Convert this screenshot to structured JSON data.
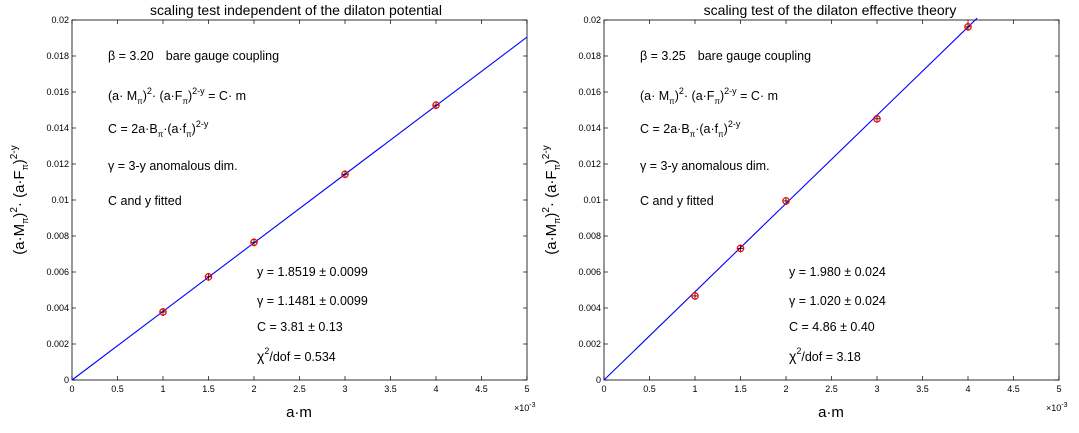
{
  "chart_data": [
    {
      "type": "scatter",
      "title": "scaling test independent of the dilaton potential",
      "xlabel": "a·m",
      "ylabel_parts": [
        "(a·M",
        "π",
        ")",
        "2",
        "· (a·F",
        "π",
        ")",
        "2-y"
      ],
      "x_exponent_label": "×10",
      "x_exponent": "-3",
      "xlim": [
        0,
        5
      ],
      "ylim": [
        0,
        0.02
      ],
      "x_ticks": [
        "0",
        "0.5",
        "1",
        "1.5",
        "2",
        "2.5",
        "3",
        "3.5",
        "4",
        "4.5",
        "5"
      ],
      "y_ticks": [
        "0",
        "0.002",
        "0.004",
        "0.006",
        "0.008",
        "0.01",
        "0.012",
        "0.014",
        "0.016",
        "0.018",
        "0.02"
      ],
      "grid": false,
      "points": [
        {
          "x": 1.0,
          "y": 0.00378
        },
        {
          "x": 1.5,
          "y": 0.00573
        },
        {
          "x": 2.0,
          "y": 0.00765
        },
        {
          "x": 3.0,
          "y": 0.01143
        },
        {
          "x": 4.0,
          "y": 0.01527
        }
      ],
      "fit_line": {
        "x": [
          0,
          5
        ],
        "y": [
          0,
          0.01905
        ]
      },
      "annotations": {
        "beta_value": "β = 3.20",
        "beta_desc": "bare gauge coupling",
        "eq1_a": "(a· M",
        "eq1_sub": "π",
        "eq1_sup": "2",
        "eq1_b": "· (a·F",
        "eq1_sub2": "π",
        "eq1_sup2": "2-y",
        "eq1_c": " = C· m",
        "eq2_a": "C = 2a·B",
        "eq2_sub": "π",
        "eq2_b": "·(a·f",
        "eq2_sub2": "π",
        "eq2_sup": "2-y",
        "gamma_def": "γ = 3-y  anomalous dim.",
        "fitted": "C and y fitted",
        "res_y": "y =  1.8519 ± 0.0099",
        "res_gamma": "γ = 1.1481 ± 0.0099",
        "res_C": "C =  3.81 ± 0.13",
        "res_chi_a": "χ",
        "res_chi_sup": "2",
        "res_chi_b": "/dof = 0.534"
      }
    },
    {
      "type": "scatter",
      "title": "scaling test of the dilaton effective theory",
      "xlabel": "a·m",
      "ylabel_parts": [
        "(a·M",
        "π",
        ")",
        "2",
        "· (a·F",
        "π",
        ")",
        "2-y"
      ],
      "x_exponent_label": "×10",
      "x_exponent": "-3",
      "xlim": [
        0,
        5
      ],
      "ylim": [
        0,
        0.02
      ],
      "x_ticks": [
        "0",
        "0.5",
        "1",
        "1.5",
        "2",
        "2.5",
        "3",
        "3.5",
        "4",
        "4.5",
        "5"
      ],
      "y_ticks": [
        "0",
        "0.002",
        "0.004",
        "0.006",
        "0.008",
        "0.01",
        "0.012",
        "0.014",
        "0.016",
        "0.018",
        "0.02"
      ],
      "grid": false,
      "points": [
        {
          "x": 1.0,
          "y": 0.00467
        },
        {
          "x": 1.5,
          "y": 0.00731
        },
        {
          "x": 2.0,
          "y": 0.00995
        },
        {
          "x": 3.0,
          "y": 0.01451
        },
        {
          "x": 4.0,
          "y": 0.01962
        }
      ],
      "fit_line": {
        "x": [
          0,
          4.1
        ],
        "y": [
          0,
          0.0201
        ]
      },
      "annotations": {
        "beta_value": "β = 3.25",
        "beta_desc": "bare gauge coupling",
        "eq1_a": "(a· M",
        "eq1_sub": "π",
        "eq1_sup": "2",
        "eq1_b": "· (a·F",
        "eq1_sub2": "π",
        "eq1_sup2": "2-y",
        "eq1_c": " = C· m",
        "eq2_a": "C = 2a·B",
        "eq2_sub": "π",
        "eq2_b": "·(a·f",
        "eq2_sub2": "π",
        "eq2_sup": "2-y",
        "gamma_def": "γ = 3-y  anomalous dim.",
        "fitted": "C and y fitted",
        "res_y": "y =  1.980 ± 0.024",
        "res_gamma": "γ = 1.020 ± 0.024",
        "res_C": "C =  4.86 ± 0.40",
        "res_chi_a": "χ",
        "res_chi_sup": "2",
        "res_chi_b": "/dof = 3.18"
      }
    }
  ]
}
